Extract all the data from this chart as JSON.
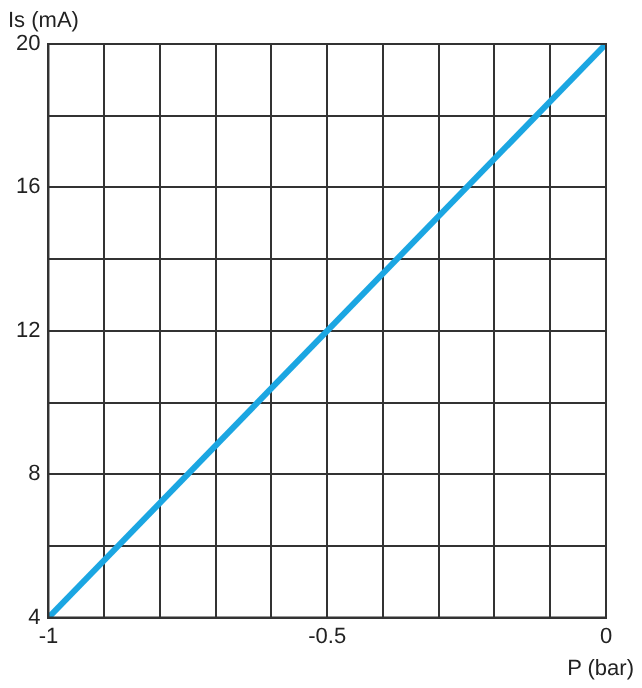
{
  "chart_data": {
    "type": "line",
    "xlabel": "P (bar)",
    "ylabel": "Is (mA)",
    "x": [
      -1,
      0
    ],
    "series": [
      {
        "color": "#1ba6e2",
        "values": [
          4,
          20
        ]
      }
    ],
    "xlim": [
      -1,
      0
    ],
    "ylim": [
      4,
      20
    ],
    "xticks": [
      -1,
      {
        "value": -0.9,
        "label": null
      },
      {
        "value": -0.8,
        "label": null
      },
      {
        "value": -0.7,
        "label": null
      },
      {
        "value": -0.6,
        "label": null
      },
      -0.5,
      {
        "value": -0.4,
        "label": null
      },
      {
        "value": -0.3,
        "label": null
      },
      {
        "value": -0.2,
        "label": null
      },
      {
        "value": -0.1,
        "label": null
      },
      0
    ],
    "yticks": [
      4,
      {
        "value": 6,
        "label": null
      },
      8,
      {
        "value": 10,
        "label": null
      },
      12,
      {
        "value": 14,
        "label": null
      },
      16,
      {
        "value": 18,
        "label": null
      },
      20
    ],
    "grid": true,
    "legend": false,
    "marker": "none",
    "line_style": "solid"
  }
}
